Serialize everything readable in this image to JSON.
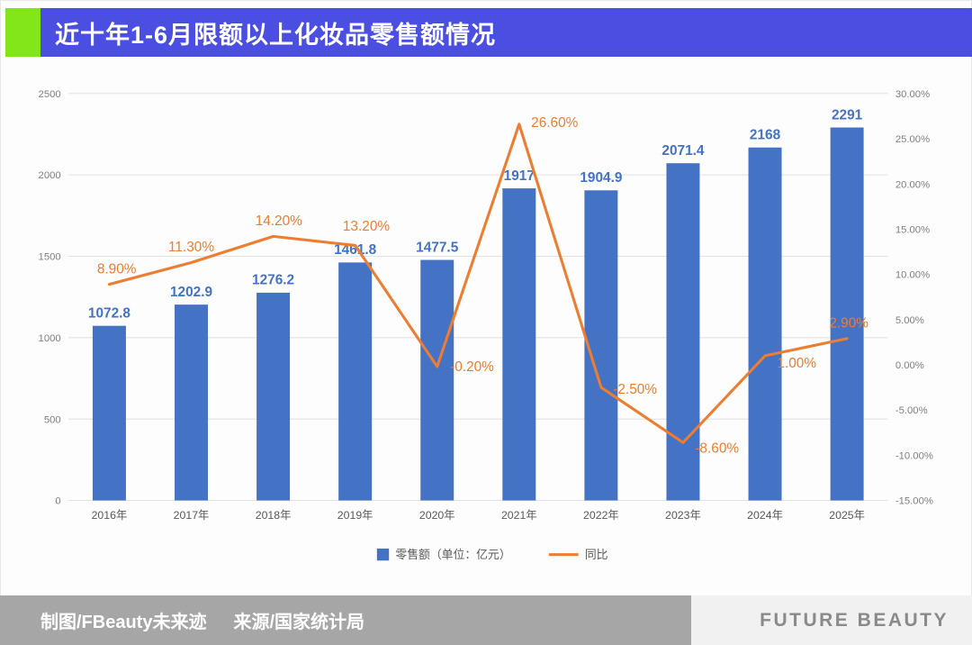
{
  "page": {
    "title": "近十年1-6月限额以上化妆品零售额情况",
    "footer": {
      "credit_maker": "制图/FBeauty未来迹",
      "credit_source": "来源/国家统计局",
      "brand": "FUTURE BEAUTY"
    }
  },
  "colors": {
    "banner": "#4b4fe1",
    "accent_green": "#83e619",
    "bar": "#4472c4",
    "line": "#ed7d31",
    "footer_bg": "#a6a6a6"
  },
  "chart_data": {
    "type": "bar+line",
    "title": "近十年1-6月限额以上化妆品零售额情况",
    "categories": [
      "2016年",
      "2017年",
      "2018年",
      "2019年",
      "2020年",
      "2021年",
      "2022年",
      "2023年",
      "2024年",
      "2025年"
    ],
    "series": [
      {
        "name": "零售额（单位：亿元）",
        "type": "bar",
        "axis": "left",
        "values": [
          1072.8,
          1202.9,
          1276.2,
          1461.8,
          1477.5,
          1917,
          1904.9,
          2071.4,
          2168,
          2291
        ],
        "labels": [
          "1072.8",
          "1202.9",
          "1276.2",
          "1461.8",
          "1477.5",
          "1917",
          "1904.9",
          "2071.4",
          "2168",
          "2291"
        ]
      },
      {
        "name": "同比",
        "type": "line",
        "axis": "right",
        "values": [
          8.9,
          11.3,
          14.2,
          13.2,
          -0.2,
          26.6,
          -2.5,
          -8.6,
          1.0,
          2.9
        ],
        "labels": [
          "8.90%",
          "11.30%",
          "14.20%",
          "13.20%",
          "-0.20%",
          "26.60%",
          "-2.50%",
          "-8.60%",
          "1.00%",
          "2.90%"
        ]
      }
    ],
    "left_axis": {
      "min": 0,
      "max": 2500,
      "step": 500,
      "tick_values": [
        0,
        500,
        1000,
        1500,
        2000,
        2500
      ],
      "ticks": [
        "0",
        "500",
        "1000",
        "1500",
        "2000",
        "2500"
      ]
    },
    "right_axis": {
      "min": -15,
      "max": 30,
      "step": 5,
      "tick_values": [
        -15,
        -10,
        -5,
        0,
        5,
        10,
        15,
        20,
        25,
        30
      ],
      "ticks": [
        "-15.00%",
        "-10.00%",
        "-5.00%",
        "0.00%",
        "5.00%",
        "10.00%",
        "15.00%",
        "20.00%",
        "25.00%",
        "30.00%"
      ]
    },
    "legend": [
      "零售额（单位：亿元）",
      "同比"
    ],
    "legend_position": "bottom",
    "grid": true
  }
}
